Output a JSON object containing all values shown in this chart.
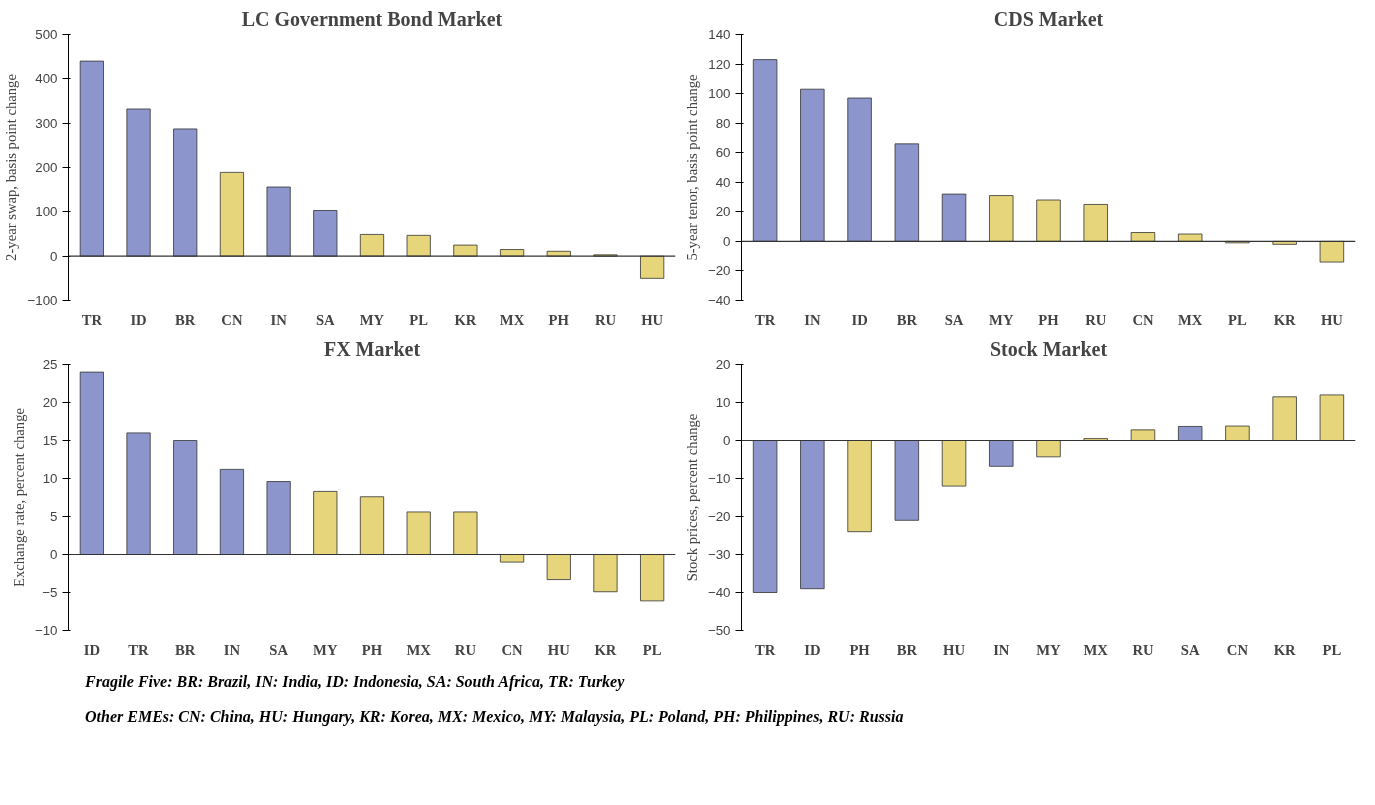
{
  "chart_data": [
    {
      "type": "bar",
      "title": "LC Government Bond Market",
      "ylabel": "2-year swap, basis point change",
      "categories": [
        "TR",
        "ID",
        "BR",
        "CN",
        "IN",
        "SA",
        "MY",
        "PL",
        "KR",
        "MX",
        "PH",
        "RU",
        "HU"
      ],
      "values": [
        440,
        332,
        287,
        189,
        156,
        103,
        49,
        47,
        25,
        15,
        11,
        3,
        -50
      ],
      "colors": [
        "#8c95cc",
        "#8c95cc",
        "#8c95cc",
        "#e6d57a",
        "#8c95cc",
        "#8c95cc",
        "#e6d57a",
        "#e6d57a",
        "#e6d57a",
        "#e6d57a",
        "#e6d57a",
        "#e6d57a",
        "#e6d57a"
      ],
      "ylim": [
        -100,
        500
      ],
      "yticks": [
        -100,
        0,
        100,
        200,
        300,
        400,
        500
      ]
    },
    {
      "type": "bar",
      "title": "CDS Market",
      "ylabel": "5-year tenor, basis point change",
      "categories": [
        "TR",
        "IN",
        "ID",
        "BR",
        "SA",
        "MY",
        "PH",
        "RU",
        "CN",
        "MX",
        "PL",
        "KR",
        "HU"
      ],
      "values": [
        123,
        103,
        97,
        66,
        32,
        31,
        28,
        25,
        6,
        5,
        -1,
        -2,
        -14
      ],
      "colors": [
        "#8c95cc",
        "#8c95cc",
        "#8c95cc",
        "#8c95cc",
        "#8c95cc",
        "#e6d57a",
        "#e6d57a",
        "#e6d57a",
        "#e6d57a",
        "#e6d57a",
        "#e6d57a",
        "#e6d57a",
        "#e6d57a"
      ],
      "ylim": [
        -40,
        140
      ],
      "yticks": [
        -40,
        -20,
        0,
        20,
        40,
        60,
        80,
        100,
        120,
        140
      ]
    },
    {
      "type": "bar",
      "title": "FX Market",
      "ylabel": "Exchange rate, percent change",
      "categories": [
        "ID",
        "TR",
        "BR",
        "IN",
        "SA",
        "MY",
        "PH",
        "MX",
        "RU",
        "CN",
        "HU",
        "KR",
        "PL"
      ],
      "values": [
        24,
        16,
        15,
        11.2,
        9.6,
        8.3,
        7.6,
        5.6,
        5.6,
        -1,
        -3.3,
        -4.9,
        -6.1
      ],
      "colors": [
        "#8c95cc",
        "#8c95cc",
        "#8c95cc",
        "#8c95cc",
        "#8c95cc",
        "#e6d57a",
        "#e6d57a",
        "#e6d57a",
        "#e6d57a",
        "#e6d57a",
        "#e6d57a",
        "#e6d57a",
        "#e6d57a"
      ],
      "ylim": [
        -10,
        25
      ],
      "yticks": [
        -10,
        -5,
        0,
        5,
        10,
        15,
        20,
        25
      ]
    },
    {
      "type": "bar",
      "title": "Stock Market",
      "ylabel": "Stock prices, percent change",
      "categories": [
        "TR",
        "ID",
        "PH",
        "BR",
        "HU",
        "IN",
        "MY",
        "MX",
        "RU",
        "SA",
        "CN",
        "KR",
        "PL"
      ],
      "values": [
        -40,
        -39,
        -24,
        -21,
        -12,
        -6.8,
        -4.3,
        0.5,
        2.8,
        3.7,
        3.8,
        11.5,
        12
      ],
      "colors": [
        "#8c95cc",
        "#8c95cc",
        "#e6d57a",
        "#8c95cc",
        "#e6d57a",
        "#8c95cc",
        "#e6d57a",
        "#e6d57a",
        "#e6d57a",
        "#8c95cc",
        "#e6d57a",
        "#e6d57a",
        "#e6d57a"
      ],
      "ylim": [
        -50,
        20
      ],
      "yticks": [
        -50,
        -40,
        -30,
        -20,
        -10,
        0,
        10,
        20
      ],
      "annotations": [
        "Fragile Five: BR: Brazil, IN: India, ID: Indonesia, SA: South Africa, TR: Turkey",
        "Other EMEs: CN: China, HU: Hungary, KR: Korea, MX: Mexico, MY: Malaysia, PL: Poland, PH: Philippines, RU: Russia"
      ]
    }
  ]
}
